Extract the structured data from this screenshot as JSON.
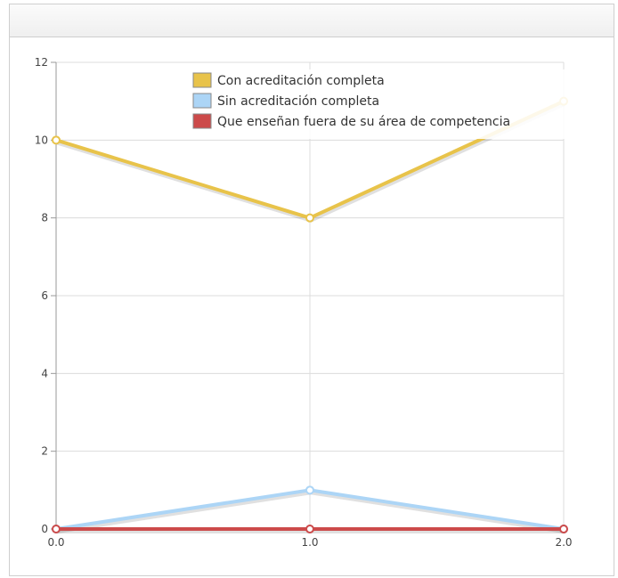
{
  "chart_data": {
    "type": "line",
    "title": "",
    "xlabel": "",
    "ylabel": "",
    "x": [
      0.0,
      1.0,
      2.0
    ],
    "x_tick_labels": [
      "0.0",
      "1.0",
      "2.0"
    ],
    "y_tick_labels": [
      "0",
      "2",
      "4",
      "6",
      "8",
      "10",
      "12"
    ],
    "xlim": [
      0,
      2
    ],
    "ylim": [
      0,
      12
    ],
    "grid": true,
    "legend_position": "top-center",
    "series": [
      {
        "name": "Con acreditación completa",
        "values": [
          10,
          8,
          11
        ],
        "color": "#e8c34a"
      },
      {
        "name": "Sin acreditación completa",
        "values": [
          0,
          1,
          0
        ],
        "color": "#acd5f6"
      },
      {
        "name": "Que enseñan fuera de su área de competencia",
        "values": [
          0,
          0,
          0
        ],
        "color": "#cc4a4a"
      }
    ]
  }
}
